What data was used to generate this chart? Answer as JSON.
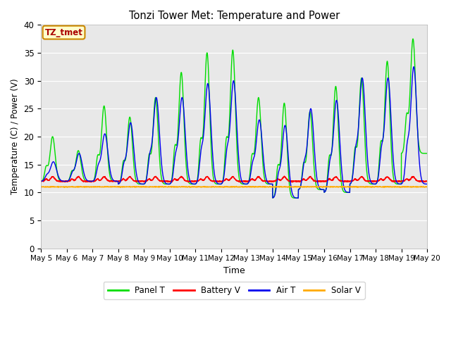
{
  "title": "Tonzi Tower Met: Temperature and Power",
  "xlabel": "Time",
  "ylabel": "Temperature (C) / Power (V)",
  "xlim": [
    0,
    15
  ],
  "ylim": [
    0,
    40
  ],
  "yticks": [
    0,
    5,
    10,
    15,
    20,
    25,
    30,
    35,
    40
  ],
  "xtick_labels": [
    "May 5",
    "May 6",
    "May 7",
    "May 8",
    "May 9",
    "May 10",
    "May 11",
    "May 12",
    "May 13",
    "May 14",
    "May 15",
    "May 16",
    "May 17",
    "May 18",
    "May 19",
    "May 20"
  ],
  "bg_color": "#e8e8e8",
  "panel_color": "#00dd00",
  "battery_color": "#ff0000",
  "air_color": "#0000ee",
  "solar_color": "#ffaa00",
  "annot_text": "TZ_tmet",
  "annot_bg": "#ffffcc",
  "annot_edge": "#cc8800",
  "annot_fg": "#aa0000",
  "legend_labels": [
    "Panel T",
    "Battery V",
    "Air T",
    "Solar V"
  ],
  "day_peaks_panel": [
    18.5,
    20.0,
    17.5,
    25.5,
    23.5,
    27.0,
    31.5,
    35.0,
    35.5,
    27.0,
    26.0,
    24.5,
    29.0,
    30.5,
    33.5,
    37.5
  ],
  "day_troughs_panel": [
    12.0,
    12.0,
    12.0,
    11.5,
    11.5,
    11.5,
    11.5,
    11.5,
    11.5,
    9.0,
    10.5,
    10.0,
    11.5,
    11.5,
    17.0,
    21.0
  ],
  "day_peaks_air": [
    16.0,
    15.5,
    17.0,
    20.5,
    22.5,
    27.0,
    27.0,
    29.5,
    30.0,
    23.0,
    22.0,
    25.0,
    26.5,
    30.5,
    30.5,
    32.5
  ],
  "day_troughs_air": [
    12.0,
    12.0,
    12.0,
    11.5,
    11.5,
    11.5,
    11.5,
    11.5,
    11.5,
    9.0,
    10.5,
    10.0,
    11.5,
    11.5,
    11.5,
    11.5
  ],
  "batt_base": 12.0,
  "solar_base": 11.0
}
